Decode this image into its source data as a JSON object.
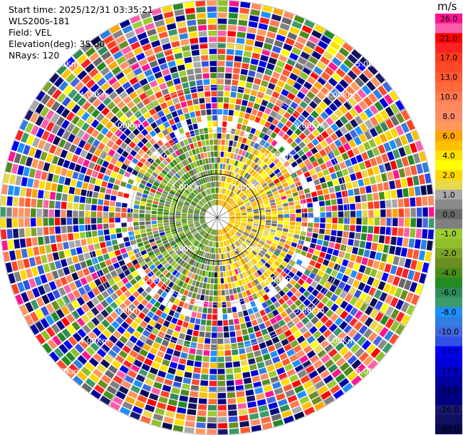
{
  "header": {
    "start_time": "Start time: 2025/12/31 03:35:21",
    "site": "WLS200s-181",
    "field": "Field: VEL",
    "elevation": "Elevation(deg): 35.00",
    "nrays": "NRays: 120"
  },
  "colorbar": {
    "unit": "m/s",
    "bins": [
      {
        "label": "26.0",
        "color": "#ff1493"
      },
      {
        "label": "",
        "color": "#ff5caa"
      },
      {
        "label": "21.0",
        "color": "#ff0000"
      },
      {
        "label": "",
        "color": "#ff2020"
      },
      {
        "label": "17.0",
        "color": "#ff3c1e"
      },
      {
        "label": "",
        "color": "#ff4a2a"
      },
      {
        "label": "13.0",
        "color": "#ff5a32"
      },
      {
        "label": "",
        "color": "#ff6a3c"
      },
      {
        "label": "10.0",
        "color": "#ff7a50"
      },
      {
        "label": "",
        "color": "#ff8a60"
      },
      {
        "label": "8.0",
        "color": "#ff8c69"
      },
      {
        "label": "",
        "color": "#ff9a5a"
      },
      {
        "label": "6.0",
        "color": "#ffa500"
      },
      {
        "label": "",
        "color": "#ffc000"
      },
      {
        "label": "4.0",
        "color": "#ffe000"
      },
      {
        "label": "",
        "color": "#ffff00"
      },
      {
        "label": "2.0",
        "color": "#ffd700"
      },
      {
        "label": "",
        "color": "#e8d84a"
      },
      {
        "label": "1.0",
        "color": "#a9a9a9"
      },
      {
        "label": "",
        "color": "#8a8a8a"
      },
      {
        "label": "0.0",
        "color": "#696969"
      },
      {
        "label": "",
        "color": "#808080"
      },
      {
        "label": "-1.0",
        "color": "#9acd32"
      },
      {
        "label": "",
        "color": "#8fbf2a"
      },
      {
        "label": "-2.0",
        "color": "#7ba428"
      },
      {
        "label": "",
        "color": "#6b8e23"
      },
      {
        "label": "-4.0",
        "color": "#4b8b1a"
      },
      {
        "label": "",
        "color": "#228b22"
      },
      {
        "label": "-6.0",
        "color": "#2e8b57"
      },
      {
        "label": "",
        "color": "#3a9a6a"
      },
      {
        "label": "-8.0",
        "color": "#1e90ff"
      },
      {
        "label": "",
        "color": "#2f7fe0"
      },
      {
        "label": "-10.0",
        "color": "#4169e1"
      },
      {
        "label": "",
        "color": "#3050e6"
      },
      {
        "label": "-13.0",
        "color": "#0000ff"
      },
      {
        "label": "",
        "color": "#0000dd"
      },
      {
        "label": "-17.0",
        "color": "#0000cd"
      },
      {
        "label": "",
        "color": "#0000a0"
      },
      {
        "label": "-21.0",
        "color": "#00008b"
      },
      {
        "label": "",
        "color": "#000080"
      },
      {
        "label": "-26.0",
        "color": "#191970"
      },
      {
        "label": "",
        "color": "#101060"
      },
      {
        "label": "-30.0",
        "color": "#0a0a50"
      }
    ]
  },
  "chart_data": {
    "type": "heatmap",
    "projection": "polar-ppi",
    "field": "VEL",
    "unit": "m/s",
    "elevation_deg": 35.0,
    "n_rays": 120,
    "range_rings_km": [
      1.0,
      2.0,
      3.0,
      4.0,
      5.0
    ],
    "ring_labels": [
      "1.00Km",
      "2.00Km",
      "3.00Km",
      "4.00Km",
      "5.00Km"
    ],
    "color_levels": [
      26.0,
      21.0,
      17.0,
      13.0,
      10.0,
      8.0,
      6.0,
      4.0,
      2.0,
      1.0,
      0.0,
      -1.0,
      -2.0,
      -4.0,
      -6.0,
      -8.0,
      -10.0,
      -13.0,
      -17.0,
      -21.0,
      -26.0,
      -30.0
    ],
    "near_field": {
      "max_range_km": 2.0,
      "east_half": "0 to 6 m/s (yellow/orange)",
      "west_half": "0 to -4 m/s (gray/olive green)"
    },
    "far_field": "mixed noise across full velocity range",
    "max_range_km": 5.0,
    "grid": true
  }
}
